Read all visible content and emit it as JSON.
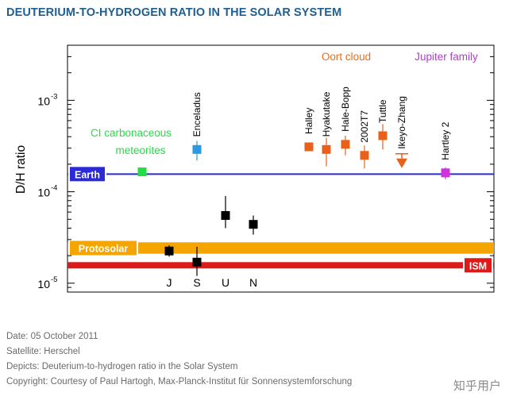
{
  "title": "DEUTERIUM-TO-HYDROGEN RATIO IN THE SOLAR SYSTEM",
  "chart_data": {
    "type": "scatter",
    "ylabel": "D/H ratio",
    "yscale": "log",
    "ylim": [
      8e-06,
      0.004
    ],
    "yticks": [
      {
        "value": 1e-05,
        "label": "10",
        "exp": "-5"
      },
      {
        "value": 0.0001,
        "label": "10",
        "exp": "-4"
      },
      {
        "value": 0.001,
        "label": "10",
        "exp": "-3"
      }
    ],
    "group_labels": [
      {
        "text": "Oort cloud",
        "color": "#e86f1a"
      },
      {
        "text": "Jupiter family",
        "color": "#b03ccf"
      }
    ],
    "bands": [
      {
        "label": "Earth",
        "value": 0.000156,
        "color": "#2a2ad8",
        "label_bg": "#2a2ad8"
      },
      {
        "label": "Protosolar",
        "min": 2.1e-05,
        "max": 2.8e-05,
        "color": "#f5a500",
        "label_bg": "#f5a500"
      },
      {
        "label": "ISM",
        "min": 1.45e-05,
        "max": 1.7e-05,
        "color": "#dd1a1a",
        "label_bg": "#dd1a1a"
      }
    ],
    "points": [
      {
        "label": "CI carbonaceous meteorites",
        "label_lines": [
          "CI carbonaceous",
          "meteorites"
        ],
        "xpos": 179,
        "value": 0.000165,
        "err_low": 0.000158,
        "err_high": 0.000172,
        "color": "#22dd44",
        "label_style": "horizontal"
      },
      {
        "label": "Enceladus",
        "xpos": 248,
        "value": 0.00029,
        "err_low": 0.00022,
        "err_high": 0.00036,
        "color": "#2a9ae0",
        "label_style": "vertical"
      },
      {
        "label": "J",
        "xpos": 213,
        "value": 2.25e-05,
        "err_low": 1.95e-05,
        "err_high": 2.6e-05,
        "color": "#000000",
        "label_style": "below"
      },
      {
        "label": "S",
        "xpos": 248,
        "value": 1.7e-05,
        "err_low": 1.2e-05,
        "err_high": 2.5e-05,
        "color": "#000000",
        "label_style": "below"
      },
      {
        "label": "U",
        "xpos": 284,
        "value": 5.5e-05,
        "err_low": 4e-05,
        "err_high": 9e-05,
        "color": "#000000",
        "label_style": "below"
      },
      {
        "label": "N",
        "xpos": 319,
        "value": 4.4e-05,
        "err_low": 3.4e-05,
        "err_high": 5.5e-05,
        "color": "#000000",
        "label_style": "below"
      },
      {
        "label": "Halley",
        "xpos": 389,
        "value": 0.00031,
        "err_low": 0.00029,
        "err_high": 0.00033,
        "color": "#e8601a",
        "label_style": "vertical"
      },
      {
        "label": "Hyakutake",
        "xpos": 411,
        "value": 0.00029,
        "err_low": 0.00019,
        "err_high": 0.00039,
        "color": "#e8601a",
        "label_style": "vertical"
      },
      {
        "label": "Hale-Bopp",
        "xpos": 435,
        "value": 0.00033,
        "err_low": 0.00025,
        "err_high": 0.00041,
        "color": "#e8601a",
        "label_style": "vertical"
      },
      {
        "label": "2002T7",
        "xpos": 459,
        "value": 0.00025,
        "err_low": 0.00018,
        "err_high": 0.00032,
        "color": "#e8601a",
        "label_style": "vertical"
      },
      {
        "label": "Tuttle",
        "xpos": 482,
        "value": 0.00041,
        "err_low": 0.00029,
        "err_high": 0.00055,
        "color": "#e8601a",
        "label_style": "vertical"
      },
      {
        "label": "Ikeyo-Zhang",
        "xpos": 506,
        "value": 0.00025,
        "upper_limit": true,
        "color": "#e8601a",
        "label_style": "vertical"
      },
      {
        "label": "Hartley 2",
        "xpos": 561,
        "value": 0.000161,
        "err_low": 0.000137,
        "err_high": 0.000185,
        "color": "#cc33dd",
        "label_style": "vertical"
      }
    ]
  },
  "meta": {
    "date": "Date: 05 October 2011",
    "satellite": "Satellite: Herschel",
    "depicts": "Depicts: Deuterium-to-hydrogen ratio in the Solar System",
    "copyright": "Copyright: Courtesy of Paul Hartogh, Max-Planck-Institut für Sonnensystemforschung"
  },
  "watermark": "知乎用户"
}
